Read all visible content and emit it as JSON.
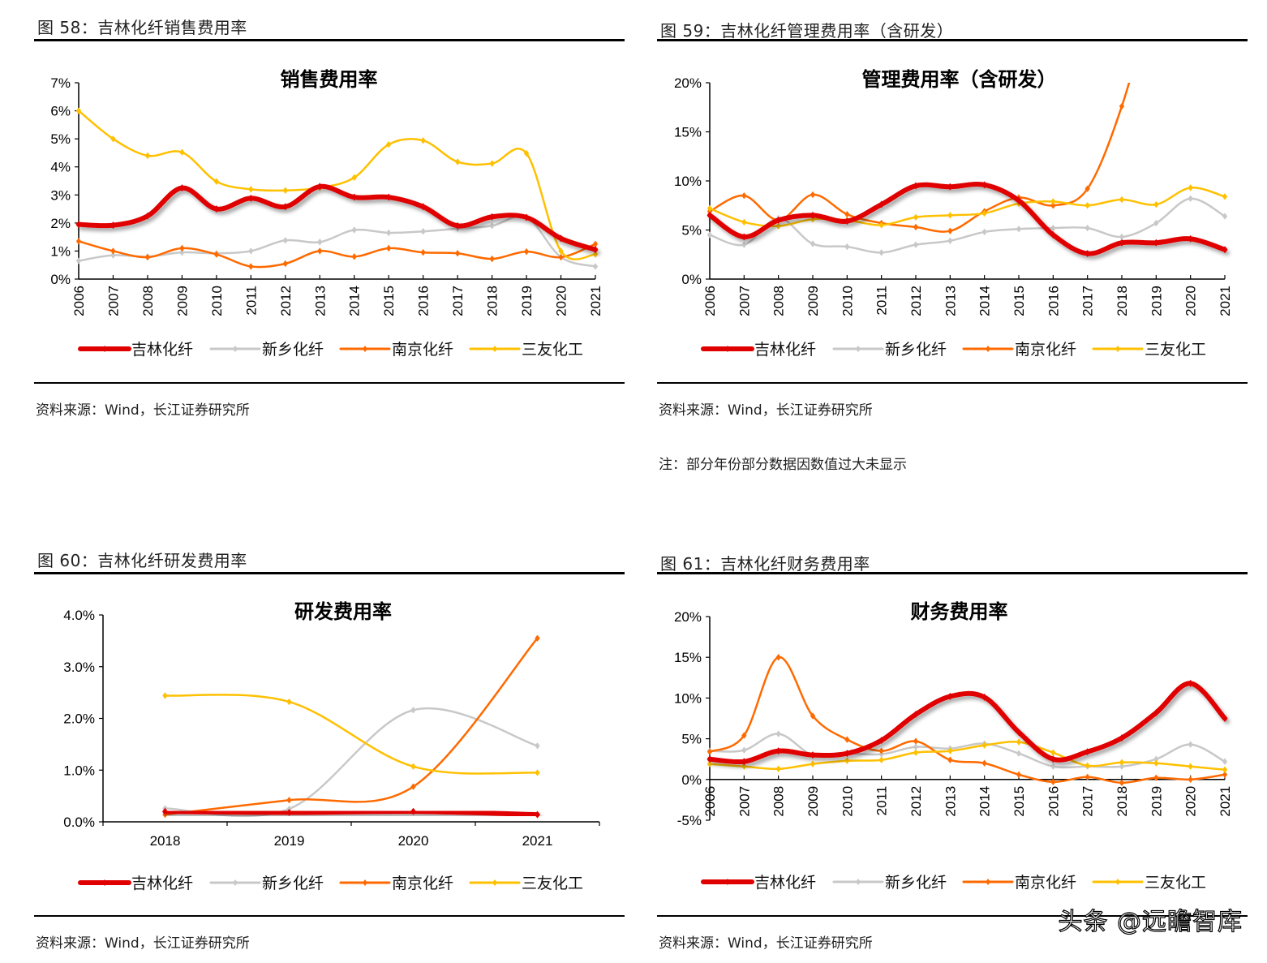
{
  "figures": [
    {
      "caption": "图 58：吉林化纤销售费用率",
      "source": "资料来源：Wind，长江证券研究所",
      "note": null
    },
    {
      "caption": "图 59：吉林化纤管理费用率（含研发）",
      "source": "资料来源：Wind，长江证券研究所",
      "note": "注：部分年份部分数据因数值过大未显示"
    },
    {
      "caption": "图 60：吉林化纤研发费用率",
      "source": "资料来源：Wind，长江证券研究所",
      "note": null
    },
    {
      "caption": "图 61：吉林化纤财务费用率",
      "source": "资料来源：Wind，长江证券研究所",
      "note": null
    }
  ],
  "watermark": "头条 @远瞻智库",
  "series_colors": {
    "吉林化纤": "#e00000",
    "新乡化纤": "#c8c8c8",
    "南京化纤": "#ff6a00",
    "三友化工": "#ffc000"
  },
  "chart_data": [
    {
      "type": "line",
      "title": "销售费用率",
      "xlabel": "",
      "ylabel": "",
      "x": [
        "2006",
        "2007",
        "2008",
        "2009",
        "2010",
        "2011",
        "2012",
        "2013",
        "2014",
        "2015",
        "2016",
        "2017",
        "2018",
        "2019",
        "2020",
        "2021"
      ],
      "ylim": [
        0,
        7
      ],
      "yticks": [
        0,
        1,
        2,
        3,
        4,
        5,
        6,
        7
      ],
      "ytick_labels": [
        "0%",
        "1%",
        "2%",
        "3%",
        "4%",
        "5%",
        "6%",
        "7%"
      ],
      "x_label_rotation": "vertical",
      "legend": "bottom",
      "grid": false,
      "series": [
        {
          "name": "吉林化纤",
          "values": [
            1.95,
            1.92,
            2.25,
            3.25,
            2.5,
            2.88,
            2.58,
            3.3,
            2.92,
            2.92,
            2.58,
            1.9,
            2.22,
            2.2,
            1.45,
            1.05
          ]
        },
        {
          "name": "新乡化纤",
          "values": [
            0.65,
            0.85,
            0.8,
            0.95,
            0.92,
            1.0,
            1.38,
            1.32,
            1.75,
            1.65,
            1.7,
            1.8,
            1.9,
            2.2,
            0.78,
            0.45
          ]
        },
        {
          "name": "南京化纤",
          "values": [
            1.35,
            1.0,
            0.78,
            1.1,
            0.88,
            0.45,
            0.55,
            1.0,
            0.8,
            1.1,
            0.95,
            0.92,
            0.72,
            0.98,
            0.78,
            1.25
          ]
        },
        {
          "name": "三友化工",
          "values": [
            6.0,
            5.0,
            4.4,
            4.52,
            3.48,
            3.2,
            3.16,
            3.26,
            3.62,
            4.8,
            4.94,
            4.18,
            4.12,
            4.48,
            1.0,
            0.88
          ]
        }
      ]
    },
    {
      "type": "line",
      "title": "管理费用率（含研发）",
      "xlabel": "",
      "ylabel": "",
      "x": [
        "2006",
        "2007",
        "2008",
        "2009",
        "2010",
        "2011",
        "2012",
        "2013",
        "2014",
        "2015",
        "2016",
        "2017",
        "2018",
        "2019",
        "2020",
        "2021"
      ],
      "ylim": [
        0,
        20
      ],
      "yticks": [
        0,
        5,
        10,
        15,
        20
      ],
      "ytick_labels": [
        "0%",
        "5%",
        "10%",
        "15%",
        "20%"
      ],
      "x_label_rotation": "vertical",
      "legend": "bottom",
      "grid": false,
      "series": [
        {
          "name": "吉林化纤",
          "values": [
            6.5,
            4.3,
            6.0,
            6.5,
            5.9,
            7.6,
            9.5,
            9.4,
            9.6,
            8.0,
            4.5,
            2.6,
            3.7,
            3.7,
            4.1,
            3.0
          ]
        },
        {
          "name": "新乡化纤",
          "values": [
            4.5,
            3.5,
            6.2,
            3.6,
            3.3,
            2.7,
            3.5,
            3.9,
            4.8,
            5.1,
            5.2,
            5.2,
            4.3,
            5.7,
            8.2,
            6.4
          ]
        },
        {
          "name": "南京化纤",
          "values": [
            6.9,
            8.5,
            6.0,
            8.6,
            6.6,
            5.7,
            5.3,
            4.9,
            6.9,
            8.3,
            7.5,
            9.2,
            17.6,
            null,
            null,
            null
          ]
        },
        {
          "name": "三友化工",
          "values": [
            7.2,
            5.8,
            5.4,
            6.1,
            6.0,
            5.5,
            6.3,
            6.5,
            6.7,
            7.7,
            7.9,
            7.5,
            8.1,
            7.6,
            9.3,
            8.4
          ]
        }
      ]
    },
    {
      "type": "line",
      "title": "研发费用率",
      "xlabel": "",
      "ylabel": "",
      "x": [
        "2018",
        "2019",
        "2020",
        "2021"
      ],
      "ylim": [
        0,
        4
      ],
      "yticks": [
        0,
        1,
        2,
        3,
        4
      ],
      "ytick_labels": [
        "0.0%",
        "1.0%",
        "2.0%",
        "3.0%",
        "4.0%"
      ],
      "x_label_rotation": "horizontal",
      "legend": "bottom",
      "grid": false,
      "series": [
        {
          "name": "吉林化纤",
          "values": [
            0.2,
            0.18,
            0.2,
            0.14
          ]
        },
        {
          "name": "新乡化纤",
          "values": [
            0.26,
            0.25,
            2.16,
            1.47
          ]
        },
        {
          "name": "南京化纤",
          "values": [
            0.14,
            0.42,
            0.68,
            3.55
          ]
        },
        {
          "name": "三友化工",
          "values": [
            2.44,
            2.32,
            1.07,
            0.95
          ]
        }
      ]
    },
    {
      "type": "line",
      "title": "财务费用率",
      "xlabel": "",
      "ylabel": "",
      "x": [
        "2006",
        "2007",
        "2008",
        "2009",
        "2010",
        "2011",
        "2012",
        "2013",
        "2014",
        "2015",
        "2016",
        "2017",
        "2018",
        "2019",
        "2020",
        "2021"
      ],
      "ylim": [
        -5,
        20
      ],
      "yticks": [
        -5,
        0,
        5,
        10,
        15,
        20
      ],
      "ytick_labels": [
        "-5%",
        "0%",
        "5%",
        "10%",
        "15%",
        "20%"
      ],
      "x_label_rotation": "vertical",
      "legend": "bottom",
      "grid": false,
      "series": [
        {
          "name": "吉林化纤",
          "values": [
            2.5,
            2.2,
            3.5,
            3.0,
            3.2,
            4.8,
            8.0,
            10.2,
            10.1,
            5.8,
            2.5,
            3.4,
            5.1,
            8.2,
            11.8,
            7.5
          ]
        },
        {
          "name": "新乡化纤",
          "values": [
            3.5,
            3.6,
            5.6,
            3.0,
            3.2,
            3.1,
            4.0,
            3.8,
            4.4,
            3.2,
            1.6,
            1.6,
            1.6,
            2.5,
            4.3,
            2.2
          ]
        },
        {
          "name": "南京化纤",
          "values": [
            3.4,
            5.4,
            15.0,
            7.8,
            4.9,
            3.5,
            4.7,
            2.4,
            2.0,
            0.6,
            -0.3,
            0.3,
            -0.4,
            0.2,
            0.0,
            0.6
          ]
        },
        {
          "name": "三友化工",
          "values": [
            1.9,
            1.6,
            1.3,
            1.9,
            2.3,
            2.4,
            3.3,
            3.5,
            4.2,
            4.6,
            3.3,
            1.7,
            2.1,
            2.0,
            1.6,
            1.2
          ]
        }
      ]
    }
  ]
}
